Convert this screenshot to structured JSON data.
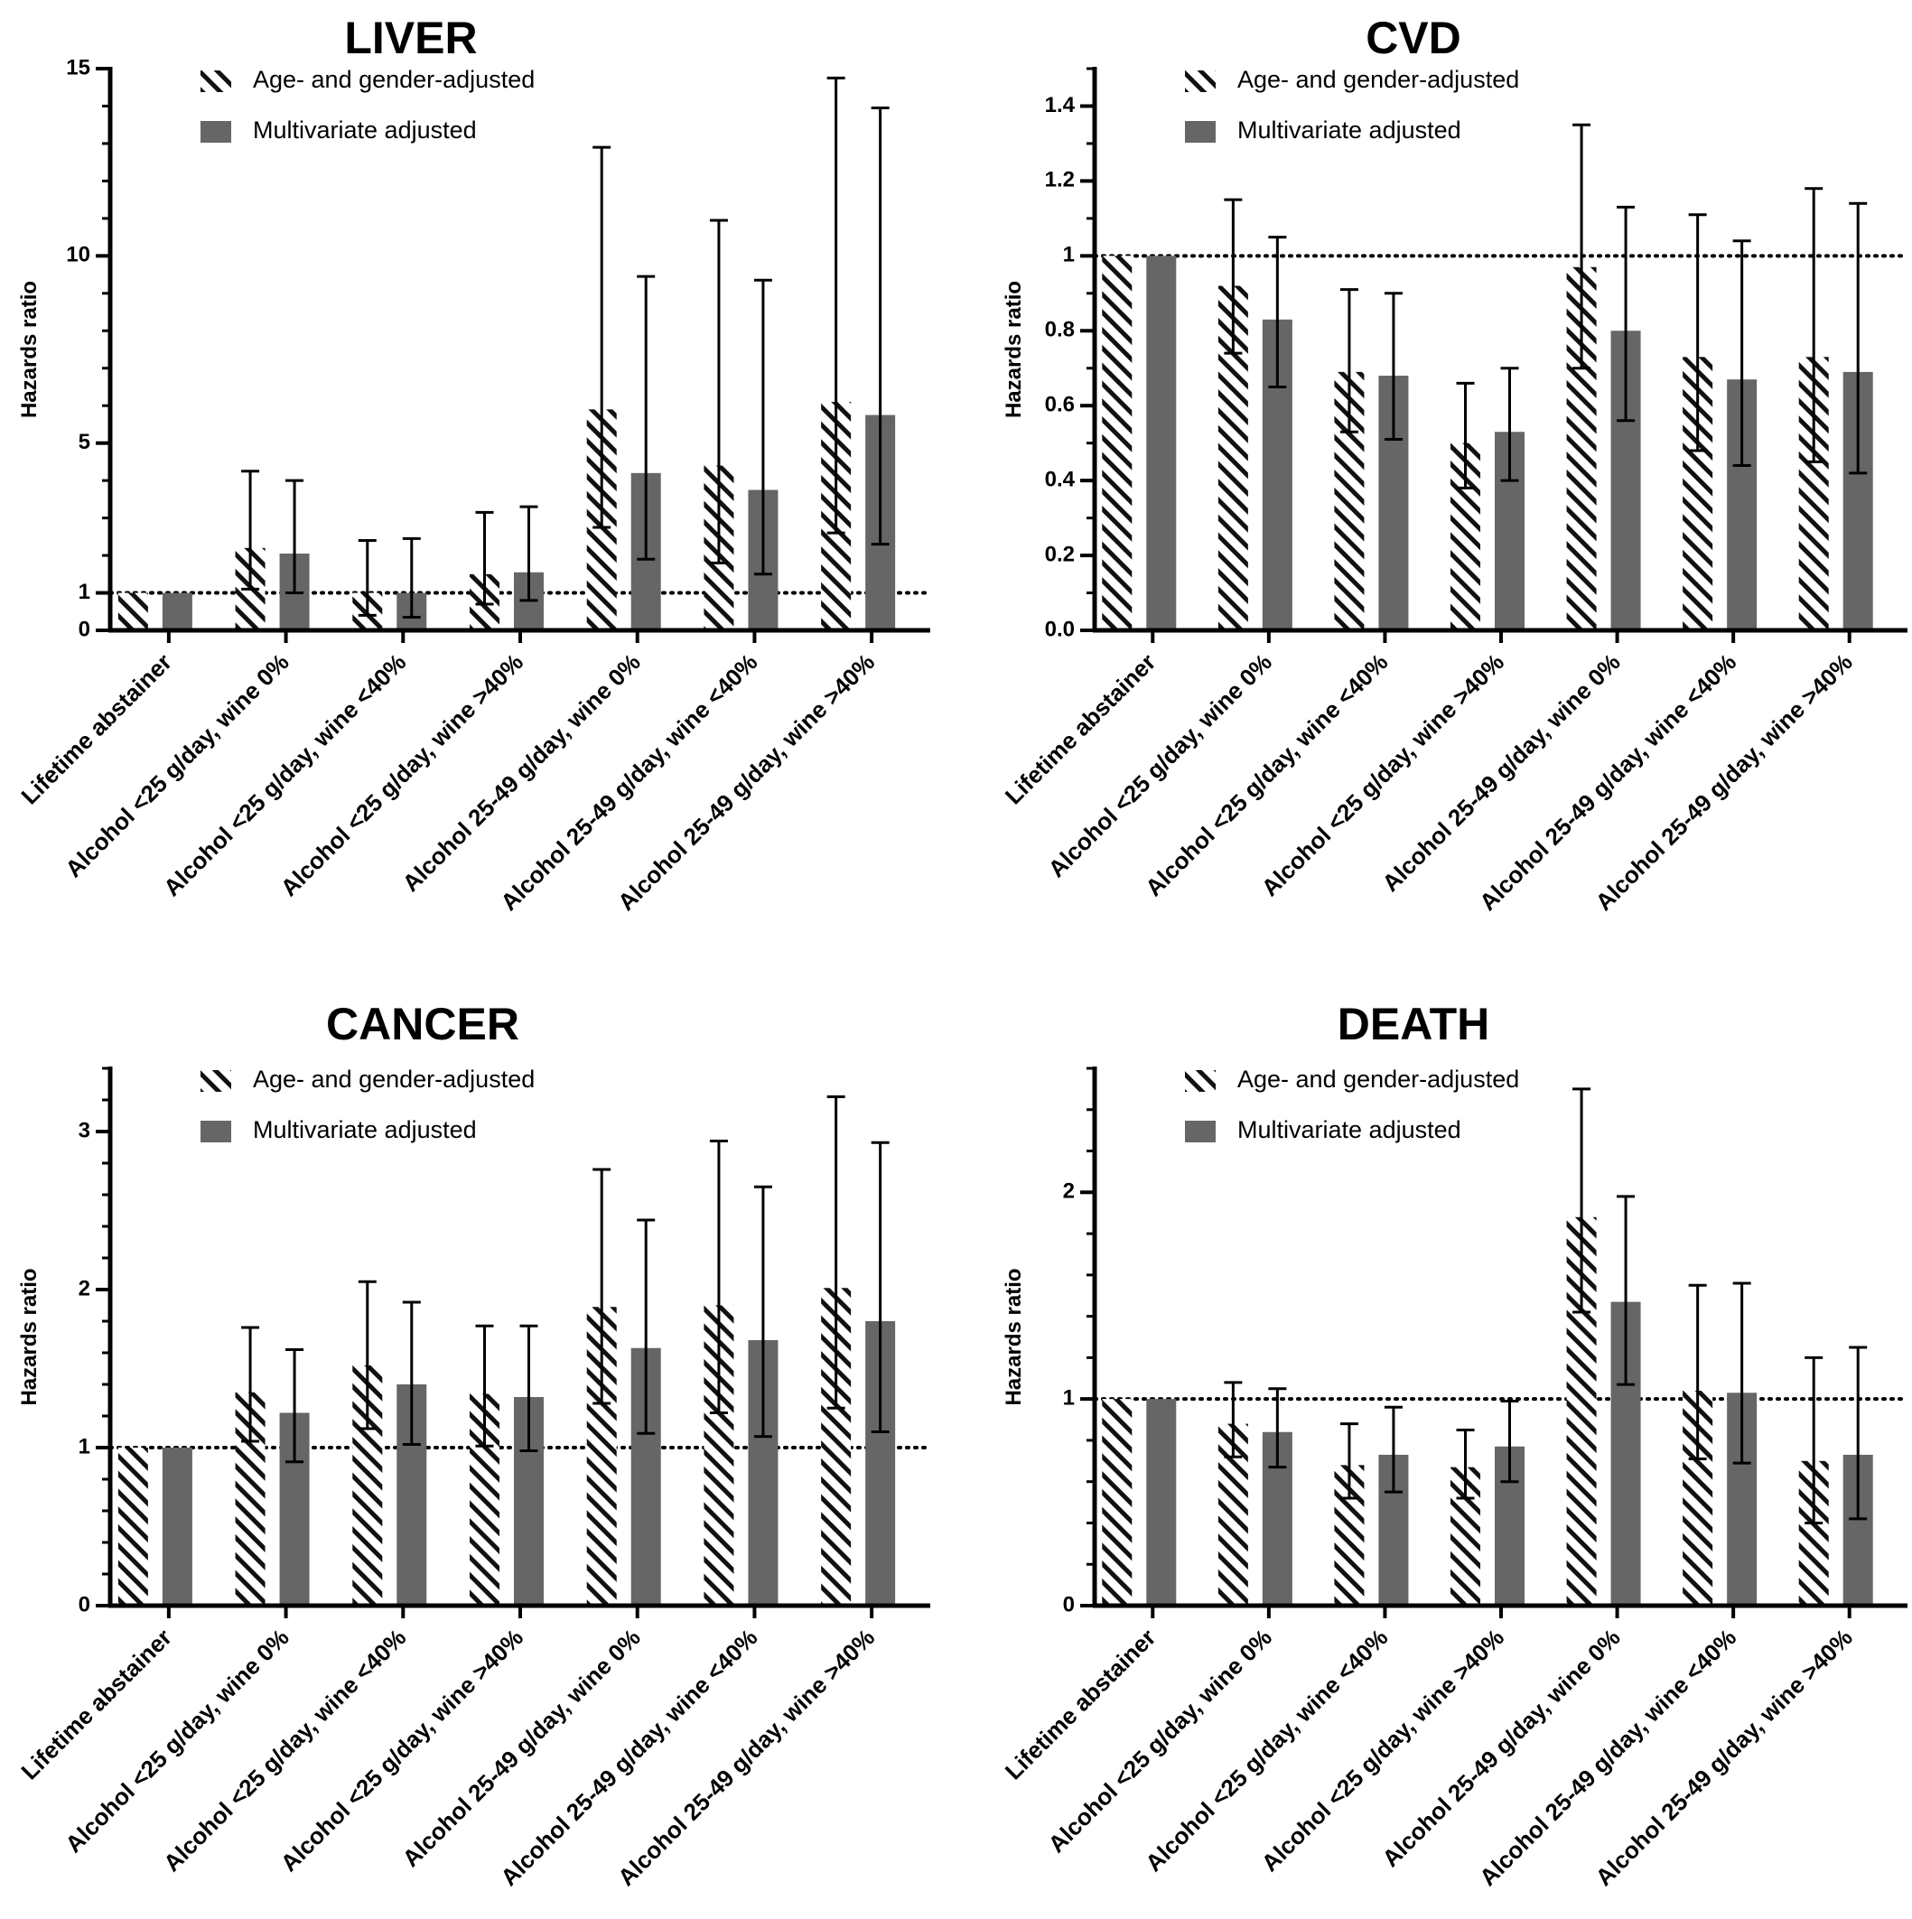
{
  "legend": {
    "age_gender": "Age- and gender-adjusted",
    "multivariate": "Multivariate adjusted"
  },
  "colors": {
    "multivariate_bar": "#666666",
    "hatch": "#111111",
    "axis": "#000000"
  },
  "chart_data": [
    {
      "type": "bar",
      "title": "LIVER",
      "ylabel": "Hazards ratio",
      "ylim": [
        0,
        15
      ],
      "yticks": [
        0,
        1,
        5,
        10,
        15
      ],
      "yminor_step": 1,
      "reference_line": 1,
      "categories": [
        "Lifetime abstainer",
        "Alcohol <25 g/day, wine 0%",
        "Alcohol <25 g/day, wine <40%",
        "Alcohol <25 g/day, wine >40%",
        "Alcohol 25-49 g/day, wine 0%",
        "Alcohol 25-49 g/day, wine <40%",
        "Alcohol 25-49 g/day, wine >40%"
      ],
      "series": [
        {
          "name": "Age- and gender-adjusted",
          "pattern": "hatched",
          "values": [
            1.0,
            2.2,
            1.0,
            1.5,
            5.9,
            4.4,
            6.1
          ],
          "err_low": [
            null,
            1.1,
            0.4,
            0.7,
            2.75,
            1.8,
            2.6
          ],
          "err_high": [
            null,
            4.25,
            2.4,
            3.15,
            12.9,
            10.95,
            14.75
          ]
        },
        {
          "name": "Multivariate adjusted",
          "pattern": "solid",
          "values": [
            1.0,
            2.05,
            1.0,
            1.55,
            4.2,
            3.75,
            5.75
          ],
          "err_low": [
            null,
            1.0,
            0.35,
            0.8,
            1.9,
            1.5,
            2.3
          ],
          "err_high": [
            null,
            4.0,
            2.45,
            3.3,
            9.45,
            9.35,
            13.95
          ]
        }
      ]
    },
    {
      "type": "bar",
      "title": "CVD",
      "ylabel": "Hazards ratio",
      "ylim": [
        0,
        1.5
      ],
      "yticks": [
        0.0,
        0.2,
        0.4,
        0.6,
        0.8,
        1,
        1.2,
        1.4
      ],
      "ytick_labels": [
        "0.0",
        "0.2",
        "0.4",
        "0.6",
        "0.8",
        "1",
        "1.2",
        "1.4"
      ],
      "yminor_step": 0.1,
      "reference_line": 1,
      "categories": [
        "Lifetime abstainer",
        "Alcohol <25 g/day, wine 0%",
        "Alcohol <25 g/day, wine <40%",
        "Alcohol <25 g/day, wine >40%",
        "Alcohol 25-49 g/day, wine 0%",
        "Alcohol 25-49 g/day, wine <40%",
        "Alcohol 25-49 g/day, wine >40%"
      ],
      "series": [
        {
          "name": "Age- and gender-adjusted",
          "pattern": "hatched",
          "values": [
            1.0,
            0.92,
            0.69,
            0.5,
            0.97,
            0.73,
            0.73
          ],
          "err_low": [
            null,
            0.74,
            0.53,
            0.38,
            0.7,
            0.48,
            0.45
          ],
          "err_high": [
            null,
            1.15,
            0.91,
            0.66,
            1.35,
            1.11,
            1.18
          ]
        },
        {
          "name": "Multivariate adjusted",
          "pattern": "solid",
          "values": [
            1.0,
            0.83,
            0.68,
            0.53,
            0.8,
            0.67,
            0.69
          ],
          "err_low": [
            null,
            0.65,
            0.51,
            0.4,
            0.56,
            0.44,
            0.42
          ],
          "err_high": [
            null,
            1.05,
            0.9,
            0.7,
            1.13,
            1.04,
            1.14
          ]
        }
      ]
    },
    {
      "type": "bar",
      "title": "CANCER",
      "ylabel": "Hazards ratio",
      "ylim": [
        0,
        3.4
      ],
      "yticks": [
        0,
        1,
        2,
        3
      ],
      "yminor_step": 0.2,
      "reference_line": 1,
      "categories": [
        "Lifetime abstainer",
        "Alcohol <25 g/day, wine 0%",
        "Alcohol <25 g/day, wine <40%",
        "Alcohol <25 g/day, wine >40%",
        "Alcohol 25-49 g/day, wine 0%",
        "Alcohol 25-49 g/day, wine <40%",
        "Alcohol 25-49 g/day, wine >40%"
      ],
      "series": [
        {
          "name": "Age- and gender-adjusted",
          "pattern": "hatched",
          "values": [
            1.0,
            1.35,
            1.52,
            1.34,
            1.89,
            1.9,
            2.01
          ],
          "err_low": [
            null,
            1.04,
            1.12,
            1.01,
            1.28,
            1.22,
            1.25
          ],
          "err_high": [
            null,
            1.76,
            2.05,
            1.77,
            2.76,
            2.94,
            3.22
          ]
        },
        {
          "name": "Multivariate adjusted",
          "pattern": "solid",
          "values": [
            1.0,
            1.22,
            1.4,
            1.32,
            1.63,
            1.68,
            1.8
          ],
          "err_low": [
            null,
            0.91,
            1.02,
            0.98,
            1.09,
            1.07,
            1.1
          ],
          "err_high": [
            null,
            1.62,
            1.92,
            1.77,
            2.44,
            2.65,
            2.93
          ]
        }
      ]
    },
    {
      "type": "bar",
      "title": "DEATH",
      "ylabel": "Hazards ratio",
      "ylim": [
        0,
        2.6
      ],
      "yticks": [
        0,
        1,
        2
      ],
      "yminor_step": 0.2,
      "reference_line": 1,
      "categories": [
        "Lifetime abstainer",
        "Alcohol <25 g/day, wine 0%",
        "Alcohol <25 g/day, wine <40%",
        "Alcohol <25 g/day, wine >40%",
        "Alcohol 25-49 g/day, wine 0%",
        "Alcohol 25-49 g/day, wine <40%",
        "Alcohol 25-49 g/day, wine >40%"
      ],
      "series": [
        {
          "name": "Age- and gender-adjusted",
          "pattern": "hatched",
          "values": [
            1.0,
            0.88,
            0.68,
            0.67,
            1.88,
            1.04,
            0.7
          ],
          "err_low": [
            null,
            0.72,
            0.52,
            0.52,
            1.42,
            0.71,
            0.4
          ],
          "err_high": [
            null,
            1.08,
            0.88,
            0.85,
            2.5,
            1.55,
            1.2
          ]
        },
        {
          "name": "Multivariate adjusted",
          "pattern": "solid",
          "values": [
            1.0,
            0.84,
            0.73,
            0.77,
            1.47,
            1.03,
            0.73
          ],
          "err_low": [
            null,
            0.67,
            0.55,
            0.6,
            1.07,
            0.69,
            0.42
          ],
          "err_high": [
            null,
            1.05,
            0.96,
            0.99,
            1.98,
            1.56,
            1.25
          ]
        }
      ]
    }
  ]
}
